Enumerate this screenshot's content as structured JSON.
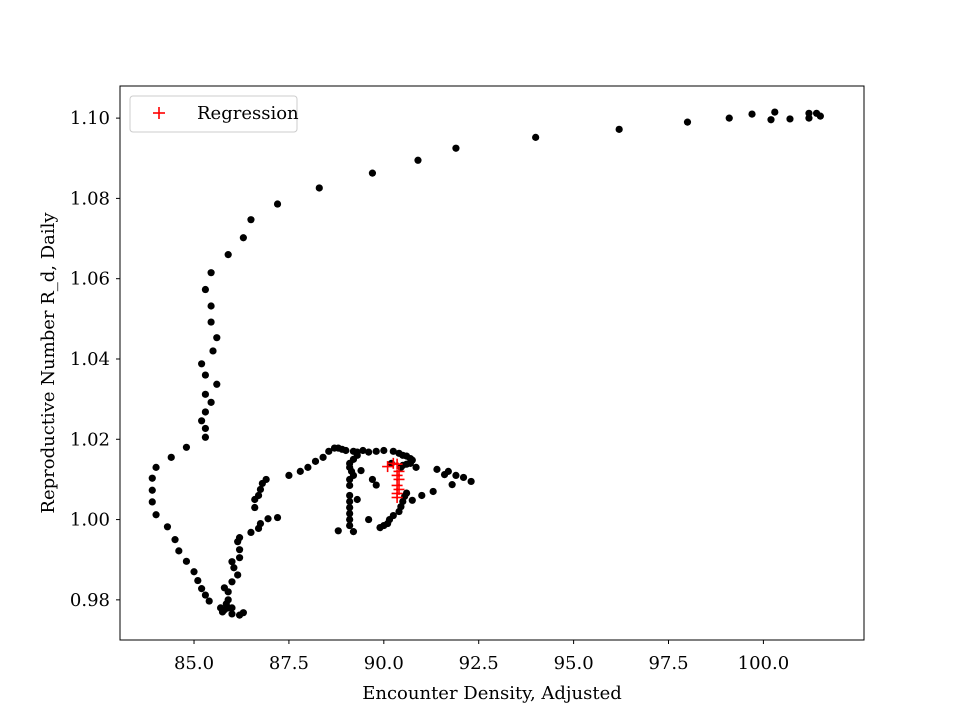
{
  "chart_data": {
    "type": "scatter",
    "title": "",
    "xlabel": "Encounter Density, Adjusted",
    "ylabel": "Reproductive Number R_d, Daily",
    "xlim": [
      83.05,
      102.65
    ],
    "ylim": [
      0.97,
      1.108
    ],
    "xticks": [
      85.0,
      87.5,
      90.0,
      92.5,
      95.0,
      97.5,
      100.0
    ],
    "xtick_labels": [
      "85.0",
      "87.5",
      "90.0",
      "92.5",
      "95.0",
      "97.5",
      "100.0"
    ],
    "yticks": [
      0.98,
      1.0,
      1.02,
      1.04,
      1.06,
      1.08,
      1.1
    ],
    "ytick_labels": [
      "0.98",
      "1.00",
      "1.02",
      "1.04",
      "1.06",
      "1.08",
      "1.10"
    ],
    "grid": false,
    "legend": {
      "placement": "top-left",
      "entries": [
        "Regression"
      ]
    },
    "series": [
      {
        "name": "",
        "marker": "dot",
        "color": "#000000",
        "points": [
          [
            101.5,
            1.1005
          ],
          [
            101.4,
            1.1012
          ],
          [
            101.2,
            1.1012
          ],
          [
            101.2,
            1.1
          ],
          [
            100.7,
            1.0998
          ],
          [
            100.3,
            1.1015
          ],
          [
            100.2,
            1.0996
          ],
          [
            99.7,
            1.101
          ],
          [
            99.1,
            1.1
          ],
          [
            98.0,
            1.099
          ],
          [
            96.2,
            1.0972
          ],
          [
            94.0,
            1.0952
          ],
          [
            91.9,
            1.0925
          ],
          [
            90.9,
            1.0895
          ],
          [
            89.7,
            1.0863
          ],
          [
            88.3,
            1.0826
          ],
          [
            87.2,
            1.0786
          ],
          [
            86.5,
            1.0747
          ],
          [
            86.3,
            1.0702
          ],
          [
            85.9,
            1.066
          ],
          [
            85.45,
            1.0615
          ],
          [
            85.3,
            1.0573
          ],
          [
            85.45,
            1.0532
          ],
          [
            85.45,
            1.0492
          ],
          [
            85.6,
            1.0453
          ],
          [
            85.5,
            1.042
          ],
          [
            85.2,
            1.0388
          ],
          [
            85.3,
            1.036
          ],
          [
            85.6,
            1.0337
          ],
          [
            85.3,
            1.0312
          ],
          [
            85.45,
            1.0292
          ],
          [
            85.3,
            1.0268
          ],
          [
            85.2,
            1.0246
          ],
          [
            85.3,
            1.0227
          ],
          [
            85.3,
            1.0205
          ],
          [
            84.8,
            1.018
          ],
          [
            84.4,
            1.0155
          ],
          [
            84.0,
            1.013
          ],
          [
            83.9,
            1.0103
          ],
          [
            83.9,
            1.0073
          ],
          [
            83.9,
            1.0044
          ],
          [
            84.0,
            1.0012
          ],
          [
            84.3,
            0.9982
          ],
          [
            84.5,
            0.995
          ],
          [
            84.6,
            0.9922
          ],
          [
            84.8,
            0.9896
          ],
          [
            85.0,
            0.987
          ],
          [
            85.1,
            0.9848
          ],
          [
            85.2,
            0.9828
          ],
          [
            85.3,
            0.9812
          ],
          [
            85.4,
            0.9797
          ],
          [
            85.7,
            0.978
          ],
          [
            85.75,
            0.977
          ],
          [
            85.8,
            0.9775
          ],
          [
            85.85,
            0.979
          ],
          [
            85.9,
            0.978
          ],
          [
            86.0,
            0.9765
          ],
          [
            86.2,
            0.9762
          ],
          [
            86.3,
            0.9768
          ],
          [
            86.0,
            0.978
          ],
          [
            85.9,
            0.98
          ],
          [
            85.9,
            0.982
          ],
          [
            85.8,
            0.983
          ],
          [
            86.0,
            0.9845
          ],
          [
            86.15,
            0.9862
          ],
          [
            86.05,
            0.988
          ],
          [
            86.0,
            0.9895
          ],
          [
            86.2,
            0.9905
          ],
          [
            86.2,
            0.9925
          ],
          [
            86.15,
            0.9945
          ],
          [
            86.2,
            0.9955
          ],
          [
            86.5,
            0.9968
          ],
          [
            86.7,
            0.9978
          ],
          [
            86.75,
            0.999
          ],
          [
            86.95,
            1.0002
          ],
          [
            87.2,
            1.0005
          ],
          [
            86.6,
            1.003
          ],
          [
            86.6,
            1.005
          ],
          [
            86.7,
            1.006
          ],
          [
            86.75,
            1.0075
          ],
          [
            86.8,
            1.009
          ],
          [
            86.9,
            1.01
          ],
          [
            87.5,
            1.011
          ],
          [
            87.8,
            1.012
          ],
          [
            88.0,
            1.013
          ],
          [
            88.2,
            1.0145
          ],
          [
            88.4,
            1.0155
          ],
          [
            88.55,
            1.017
          ],
          [
            88.7,
            1.0178
          ],
          [
            88.8,
            1.0178
          ],
          [
            88.9,
            1.0175
          ],
          [
            89.0,
            1.0172
          ],
          [
            89.2,
            1.017
          ],
          [
            89.3,
            1.0168
          ],
          [
            89.45,
            1.0172
          ],
          [
            89.6,
            1.0168
          ],
          [
            89.8,
            1.017
          ],
          [
            90.0,
            1.0172
          ],
          [
            90.25,
            1.017
          ],
          [
            90.4,
            1.0165
          ],
          [
            90.5,
            1.016
          ],
          [
            90.6,
            1.0158
          ],
          [
            90.7,
            1.0152
          ],
          [
            90.75,
            1.0148
          ],
          [
            90.7,
            1.014
          ],
          [
            90.6,
            1.0138
          ],
          [
            90.5,
            1.0135
          ],
          [
            90.45,
            1.013
          ],
          [
            89.3,
            1.016
          ],
          [
            89.2,
            1.015
          ],
          [
            89.1,
            1.014
          ],
          [
            89.1,
            1.013
          ],
          [
            89.15,
            1.012
          ],
          [
            89.2,
            1.011
          ],
          [
            89.4,
            1.0122
          ],
          [
            89.7,
            1.01
          ],
          [
            89.8,
            1.0086
          ],
          [
            89.1,
            1.01
          ],
          [
            89.1,
            1.0085
          ],
          [
            89.1,
            1.006
          ],
          [
            89.1,
            1.0045
          ],
          [
            89.1,
            1.003
          ],
          [
            89.1,
            1.0015
          ],
          [
            89.1,
            1.0
          ],
          [
            89.1,
            0.9985
          ],
          [
            89.2,
            0.997
          ],
          [
            88.8,
            0.9972
          ],
          [
            89.3,
            1.005
          ],
          [
            89.6,
            1.0
          ],
          [
            89.9,
            0.998
          ],
          [
            90.0,
            0.9985
          ],
          [
            90.1,
            0.999
          ],
          [
            90.15,
            1.0
          ],
          [
            90.25,
            1.001
          ],
          [
            90.4,
            1.002
          ],
          [
            90.45,
            1.0032
          ],
          [
            90.5,
            1.0045
          ],
          [
            90.55,
            1.0058
          ],
          [
            90.6,
            1.0066
          ],
          [
            90.75,
            1.0048
          ],
          [
            91.0,
            1.006
          ],
          [
            91.3,
            1.007
          ],
          [
            91.4,
            1.0125
          ],
          [
            91.7,
            1.012
          ],
          [
            91.9,
            1.011
          ],
          [
            92.1,
            1.0105
          ],
          [
            92.3,
            1.0095
          ],
          [
            91.8,
            1.0087
          ],
          [
            91.6,
            1.0112
          ],
          [
            90.2,
            1.014
          ],
          [
            90.85,
            1.013
          ]
        ]
      },
      {
        "name": "Regression",
        "marker": "plus",
        "color": "#ff0000",
        "points": [
          [
            90.1,
            1.0132
          ],
          [
            90.25,
            1.014
          ],
          [
            90.35,
            1.0138
          ],
          [
            90.4,
            1.012
          ],
          [
            90.35,
            1.011
          ],
          [
            90.4,
            1.01
          ],
          [
            90.35,
            1.0085
          ],
          [
            90.4,
            1.0075
          ],
          [
            90.35,
            1.0065
          ],
          [
            90.35,
            1.0055
          ]
        ]
      }
    ]
  }
}
